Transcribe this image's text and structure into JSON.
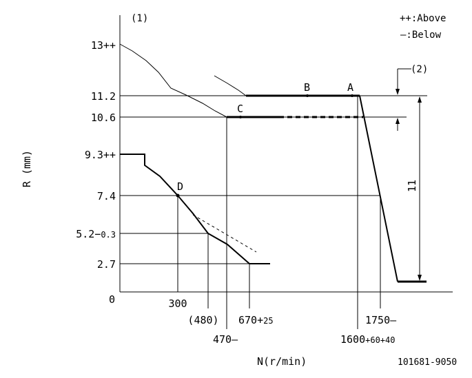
{
  "legend": {
    "above": "++:Above",
    "below": "—:Below"
  },
  "note_1": "(1)",
  "note_2": "(2)",
  "axes": {
    "y_label": "R (mm)",
    "x_label": "N(r/min)",
    "origin": "0"
  },
  "y_ticks": {
    "t13": "13++",
    "t11_2": "11.2",
    "t10_6": "10.6",
    "t9_3": "9.3++",
    "t7_4": "7.4",
    "t5_2": "5.2−",
    "t5_2_tol": "0.3",
    "t2_7": "2.7"
  },
  "x_ticks": {
    "t300": "300",
    "t480": "(480)",
    "t670": "670+",
    "t670_tol": "25",
    "t470": "470—",
    "t1600": "1600",
    "t1600_tol": "+60+40",
    "t1750": "1750—"
  },
  "points": {
    "A": "A",
    "B": "B",
    "C": "C",
    "D": "D"
  },
  "dimension_11": "11",
  "drawing_code": "101681-9050"
}
